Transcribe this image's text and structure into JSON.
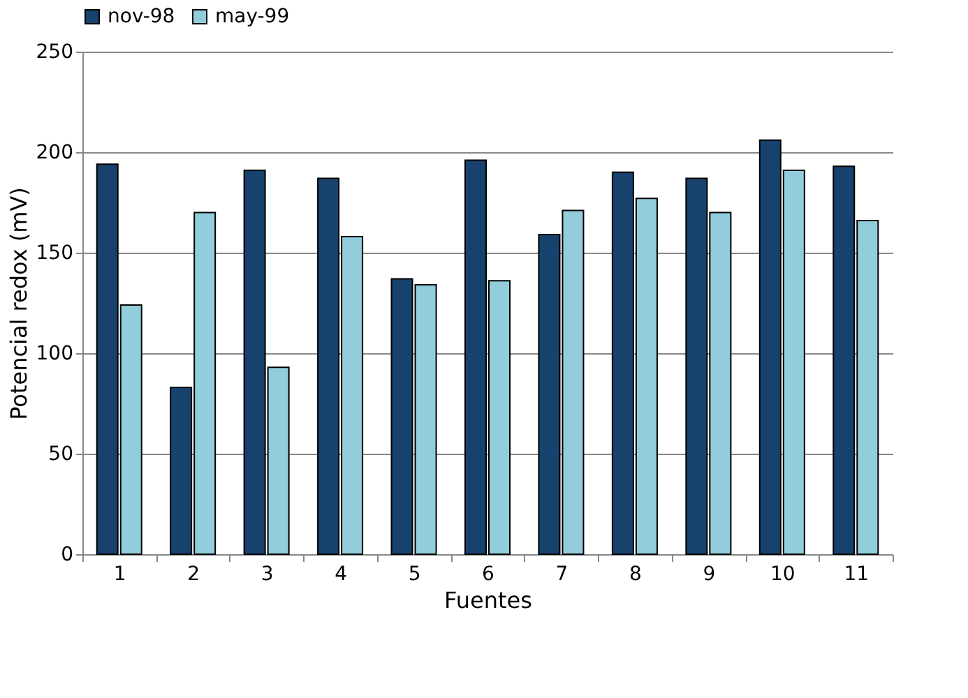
{
  "chart_data": {
    "type": "bar",
    "xlabel": "Fuentes",
    "ylabel": "Potencial redox (mV)",
    "categories": [
      "1",
      "2",
      "3",
      "4",
      "5",
      "6",
      "7",
      "8",
      "9",
      "10",
      "11"
    ],
    "series": [
      {
        "name": "nov-98",
        "color": "#17426e",
        "values": [
          194,
          83,
          191,
          187,
          137,
          196,
          159,
          190,
          187,
          206,
          193
        ]
      },
      {
        "name": "may-99",
        "color": "#92cddc",
        "values": [
          124,
          170,
          93,
          158,
          134,
          136,
          171,
          177,
          170,
          191,
          166
        ]
      }
    ],
    "ylim": [
      0,
      250
    ],
    "yticks": [
      0,
      50,
      100,
      150,
      200,
      250
    ],
    "grid": "y",
    "legend": "top"
  }
}
